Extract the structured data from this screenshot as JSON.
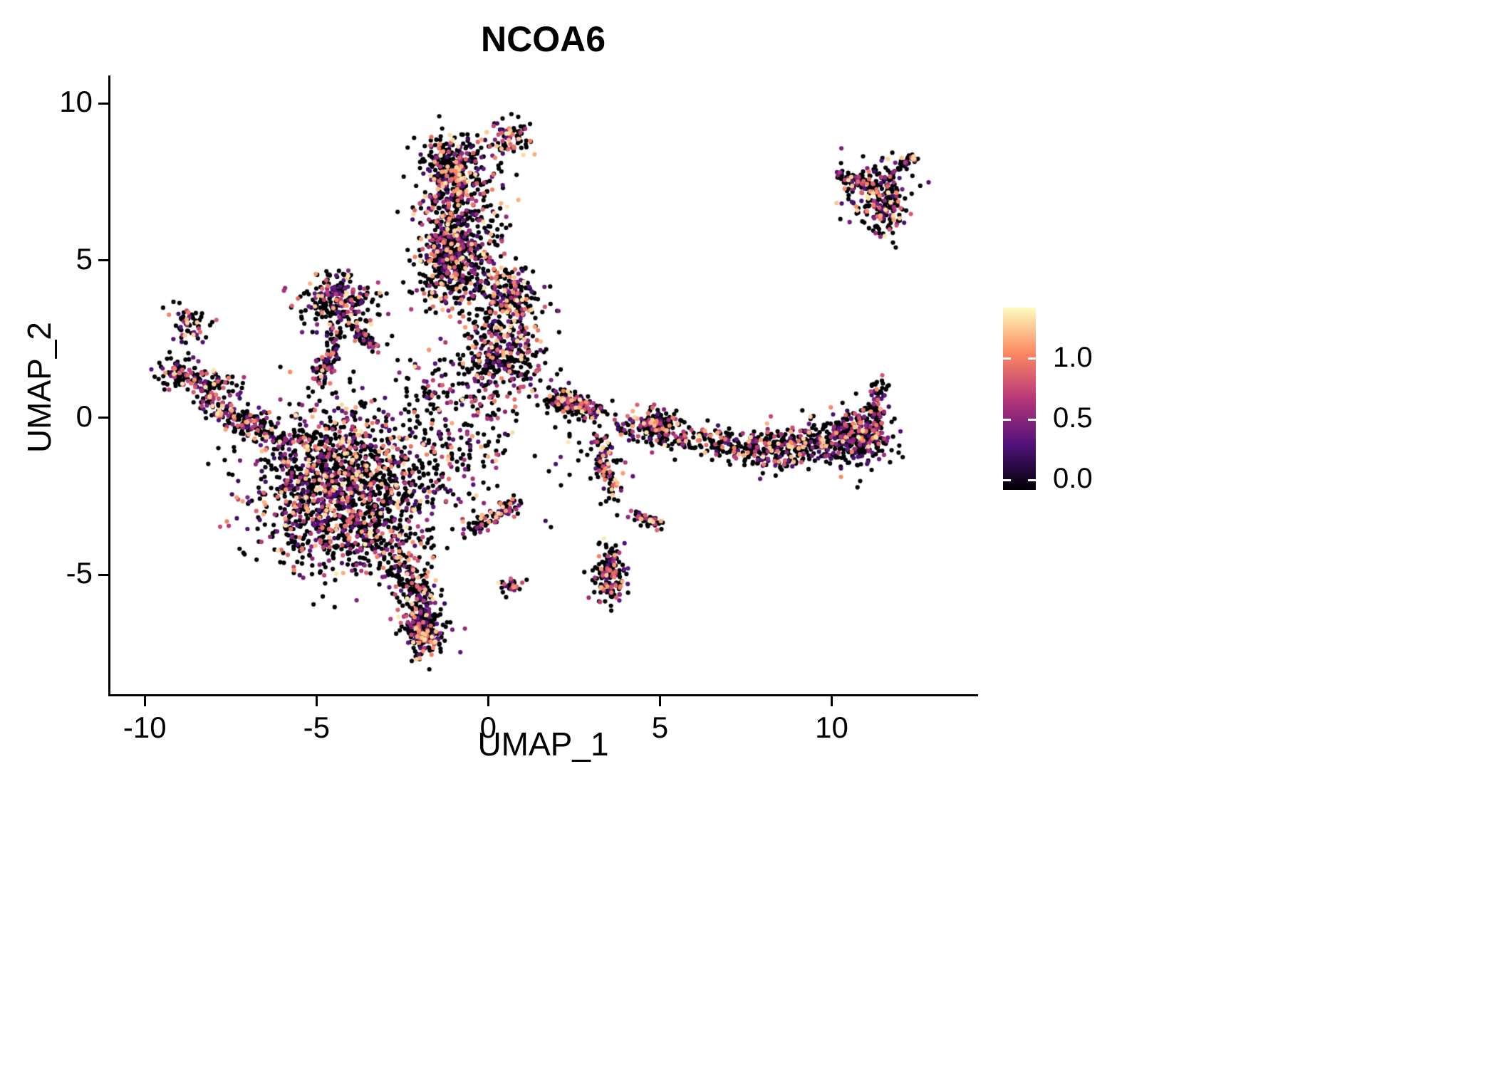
{
  "title": "NCOA6",
  "axes": {
    "x": {
      "label": "UMAP_1",
      "ticks": [
        "-10",
        "-5",
        "0",
        "5",
        "10"
      ],
      "tick_values": [
        -10,
        -5,
        0,
        5,
        10
      ],
      "range": [
        -11.0,
        14.2
      ]
    },
    "y": {
      "label": "UMAP_2",
      "ticks": [
        "10",
        "5",
        "0",
        "-5"
      ],
      "tick_values": [
        10,
        5,
        0,
        -5
      ],
      "range": [
        -8.8,
        10.8
      ]
    }
  },
  "legend": {
    "tick_labels": [
      "1.0",
      "0.5",
      "0.0"
    ],
    "tick_values": [
      1.0,
      0.5,
      0.0
    ],
    "bar_value_range": [
      -0.08,
      1.42
    ]
  },
  "colors": {
    "background": "#ffffff",
    "axis": "#000000",
    "text": "#000000",
    "colormap_name": "magma",
    "colormap_stops": [
      "#000004",
      "#51127c",
      "#b73779",
      "#fc8961",
      "#fcfdbf"
    ]
  },
  "chart_data": {
    "type": "scatter",
    "title": "NCOA6",
    "xlabel": "UMAP_1",
    "ylabel": "UMAP_2",
    "xlim": [
      -11.0,
      14.2
    ],
    "ylim": [
      -8.8,
      10.8
    ],
    "grid": false,
    "legend_position": "right",
    "point_radius_px": 3.1,
    "color_domain": [
      0,
      1.4
    ],
    "expression": {
      "zero_fraction": 0.62,
      "nonzero_min": 0.25,
      "nonzero_span": 1.1,
      "nonzero_pow": 1.3
    },
    "seed": 42,
    "clusters": [
      {
        "name": "main-blob",
        "cx": -4.35,
        "cy": -2.1,
        "sx": 1.25,
        "sy": 1.25,
        "n": 1500
      },
      {
        "name": "main-blob-bottom-tail",
        "cx": -3.3,
        "cy": -4.0,
        "sx": 0.7,
        "sy": 0.5,
        "n": 150
      },
      {
        "name": "lower-tail-blob",
        "cx": -1.85,
        "cy": -6.7,
        "sx": 0.33,
        "sy": 0.55,
        "n": 150
      },
      {
        "name": "top-column-upper",
        "cx": -1.05,
        "cy": 7.9,
        "sx": 0.45,
        "sy": 0.55,
        "n": 230
      },
      {
        "name": "top-column-mid",
        "cx": -0.95,
        "cy": 5.3,
        "sx": 0.5,
        "sy": 0.8,
        "n": 280
      },
      {
        "name": "top-small-right",
        "cx": 0.55,
        "cy": 8.95,
        "sx": 0.35,
        "sy": 0.28,
        "n": 90
      },
      {
        "name": "center-upper",
        "cx": 0.6,
        "cy": 3.9,
        "sx": 0.5,
        "sy": 0.45,
        "n": 220
      },
      {
        "name": "center-lower",
        "cx": 0.5,
        "cy": 2.1,
        "sx": 0.55,
        "sy": 0.6,
        "n": 260
      },
      {
        "name": "center-sparse",
        "cx": -0.7,
        "cy": 0.9,
        "sx": 1.2,
        "sy": 0.9,
        "n": 230
      },
      {
        "name": "center-bridge-sparse",
        "cx": -1.0,
        "cy": -1.6,
        "sx": 0.9,
        "sy": 0.9,
        "n": 110
      },
      {
        "name": "triangle-cluster",
        "cx": -4.4,
        "cy": 3.7,
        "sx": 0.6,
        "sy": 0.45,
        "n": 240
      },
      {
        "name": "left-arm-tip",
        "cx": -8.75,
        "cy": 2.95,
        "sx": 0.33,
        "sy": 0.3,
        "n": 60
      },
      {
        "name": "right-band-right",
        "cx": 11.0,
        "cy": -0.55,
        "sx": 0.4,
        "sy": 0.55,
        "n": 150
      },
      {
        "name": "mid-right-knot",
        "cx": 2.15,
        "cy": 0.5,
        "sx": 0.28,
        "sy": 0.22,
        "n": 70
      },
      {
        "name": "small-cluster-five",
        "cx": 4.9,
        "cy": -0.15,
        "sx": 0.3,
        "sy": 0.25,
        "n": 70
      },
      {
        "name": "teardrop",
        "cx": 3.55,
        "cy": -5.0,
        "sx": 0.22,
        "sy": 0.45,
        "n": 150
      },
      {
        "name": "tiny-low",
        "cx": 0.65,
        "cy": -5.35,
        "sx": 0.17,
        "sy": 0.15,
        "n": 30
      },
      {
        "name": "topright-main",
        "cx": 11.35,
        "cy": 7.3,
        "sx": 0.5,
        "sy": 0.42,
        "n": 150
      },
      {
        "name": "topright-lower",
        "cx": 11.55,
        "cy": 6.5,
        "sx": 0.28,
        "sy": 0.38,
        "n": 100
      },
      {
        "name": "right-sparse",
        "cx": 3.0,
        "cy": -1.3,
        "sx": 0.7,
        "sy": 0.8,
        "n": 40
      },
      {
        "name": "col-right-sparse",
        "cx": 0.3,
        "cy": 6.2,
        "sx": 0.3,
        "sy": 0.5,
        "n": 25
      },
      {
        "name": "col-bottom-sparse",
        "cx": -0.2,
        "cy": 4.7,
        "sx": 0.45,
        "sy": 0.4,
        "n": 30
      }
    ],
    "streaks": [
      {
        "name": "blob-left-edge",
        "x1": -7.4,
        "y1": 0.1,
        "x2": -6.0,
        "y2": -0.8,
        "jitter": 0.25,
        "n": 80
      },
      {
        "name": "lower-tail",
        "x1": -2.45,
        "y1": -4.5,
        "x2": -1.8,
        "y2": -7.3,
        "jitter": 0.28,
        "n": 240
      },
      {
        "name": "top-column",
        "x1": -1.25,
        "y1": 3.7,
        "x2": -0.85,
        "y2": 8.5,
        "jitter": 0.5,
        "n": 470
      },
      {
        "name": "triangle-streak",
        "x1": -4.9,
        "y1": 1.1,
        "x2": -4.35,
        "y2": 2.9,
        "jitter": 0.15,
        "n": 90
      },
      {
        "name": "triangle-arm",
        "x1": -3.95,
        "y1": 2.95,
        "x2": -3.25,
        "y2": 2.2,
        "jitter": 0.12,
        "n": 50
      },
      {
        "name": "left-arm",
        "x1": -9.4,
        "y1": 1.55,
        "x2": -7.6,
        "y2": 0.95,
        "jitter": 0.3,
        "n": 160
      },
      {
        "name": "left-arm-lower",
        "x1": -8.3,
        "y1": 0.6,
        "x2": -6.9,
        "y2": -0.35,
        "jitter": 0.25,
        "n": 110
      },
      {
        "name": "right-band",
        "x1": 7.6,
        "y1": -1.15,
        "x2": 11.2,
        "y2": -0.5,
        "jitter": 0.42,
        "n": 520
      },
      {
        "name": "right-band-arm",
        "x1": 3.9,
        "y1": -0.15,
        "x2": 7.6,
        "y2": -1.05,
        "jitter": 0.3,
        "n": 250
      },
      {
        "name": "right-tip-up",
        "x1": 11.2,
        "y1": -0.05,
        "x2": 11.4,
        "y2": 1.1,
        "jitter": 0.12,
        "n": 55
      },
      {
        "name": "mid-right-streak",
        "x1": 1.95,
        "y1": 0.6,
        "x2": 3.2,
        "y2": 0.15,
        "jitter": 0.18,
        "n": 140
      },
      {
        "name": "right-descender",
        "x1": 3.25,
        "y1": -0.6,
        "x2": 3.6,
        "y2": -2.6,
        "jitter": 0.15,
        "n": 90
      },
      {
        "name": "small-streak",
        "x1": 4.2,
        "y1": -3.1,
        "x2": 4.9,
        "y2": -3.4,
        "jitter": 0.12,
        "n": 50
      },
      {
        "name": "low-center-streak",
        "x1": -0.6,
        "y1": -3.6,
        "x2": 0.9,
        "y2": -2.65,
        "jitter": 0.15,
        "n": 90
      },
      {
        "name": "topright-left-arm",
        "x1": 10.25,
        "y1": 7.75,
        "x2": 11.0,
        "y2": 7.45,
        "jitter": 0.12,
        "n": 50
      },
      {
        "name": "topright-tip",
        "x1": 11.9,
        "y1": 7.95,
        "x2": 12.45,
        "y2": 8.3,
        "jitter": 0.1,
        "n": 35
      }
    ]
  }
}
